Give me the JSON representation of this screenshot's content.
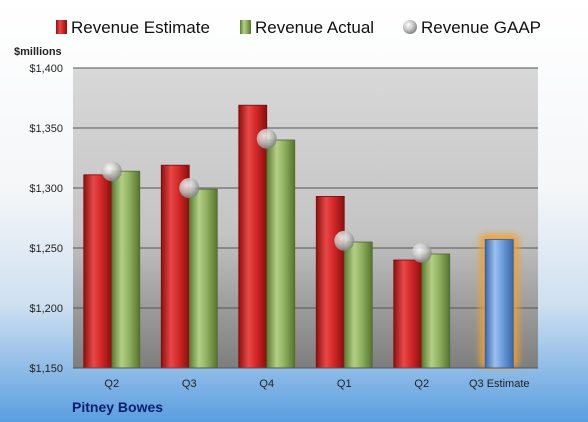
{
  "company": "Pitney Bowes",
  "chart_data": {
    "type": "bar",
    "unit_label": "$millions",
    "categories": [
      "Q2",
      "Q3",
      "Q4",
      "Q1",
      "Q2",
      "Q3 Estimate"
    ],
    "ylim": [
      1150,
      1400
    ],
    "yticks": [
      1150,
      1200,
      1250,
      1300,
      1350,
      1400
    ],
    "ytick_labels": [
      "$1,150",
      "$1,200",
      "$1,250",
      "$1,300",
      "$1,350",
      "$1,400"
    ],
    "grid": true,
    "legend_position": "top",
    "series": [
      {
        "name": "Revenue Estimate",
        "kind": "bar",
        "color": "#cc2222",
        "values": [
          1311,
          1319,
          1369,
          1293,
          1240,
          null
        ]
      },
      {
        "name": "Revenue Actual",
        "kind": "bar",
        "color": "#88a85a",
        "values": [
          1314,
          1299,
          1340,
          1255,
          1245,
          null
        ]
      },
      {
        "name": "Revenue GAAP",
        "kind": "marker",
        "color": "#b8b8b8",
        "values": [
          1314,
          1300,
          1341,
          1256,
          1246,
          null
        ]
      }
    ],
    "highlight": {
      "category": "Q3 Estimate",
      "value": 1257,
      "color": "#5b8fd6",
      "glow": "#f0a030"
    }
  }
}
